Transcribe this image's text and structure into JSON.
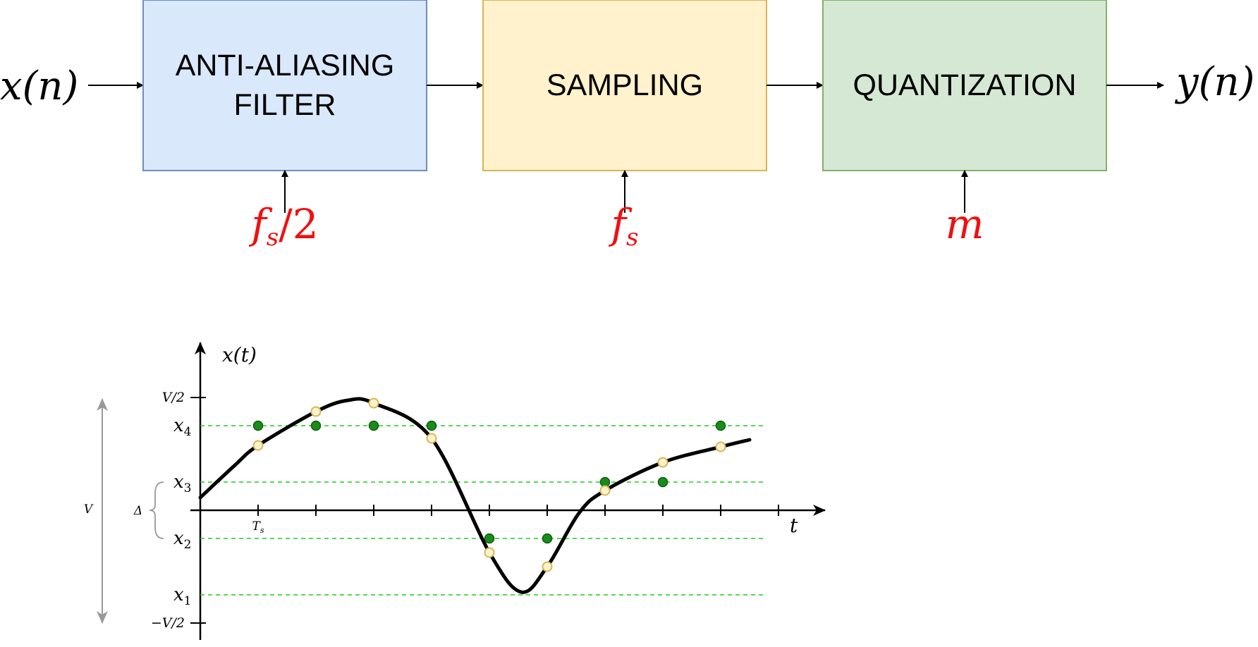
{
  "pipeline": {
    "input": {
      "symbol": "x(n)"
    },
    "output": {
      "symbol": "y(n)"
    },
    "blocks": [
      {
        "id": "anti-aliasing",
        "lines": [
          "ANTI-ALIASING",
          "FILTER"
        ],
        "param": "f",
        "param_sub": "s",
        "param_suffix": "/2",
        "fill": "#dae8fc",
        "stroke": "#6c8ebf"
      },
      {
        "id": "sampling",
        "lines": [
          "SAMPLING"
        ],
        "param": "f",
        "param_sub": "s",
        "param_suffix": "",
        "fill": "#fff2cc",
        "stroke": "#d6b656"
      },
      {
        "id": "quantization",
        "lines": [
          "QUANTIZATION"
        ],
        "param": "m",
        "param_sub": "",
        "param_suffix": "",
        "fill": "#d5e8d4",
        "stroke": "#82b366"
      }
    ]
  },
  "plot": {
    "y_axis_label": "x(t)",
    "x_axis_label": "t",
    "x_tick_label": {
      "base": "T",
      "sub": "s"
    },
    "range_label": "V",
    "step_label": "Δ",
    "top_label": "V/2",
    "bottom_label": "−V/2",
    "levels": [
      {
        "name": "x",
        "sub": "4",
        "value": 0.3
      },
      {
        "name": "x",
        "sub": "3",
        "value": 0.1
      },
      {
        "name": "x",
        "sub": "2",
        "value": -0.1
      },
      {
        "name": "x",
        "sub": "1",
        "value": -0.3
      }
    ],
    "v_half": 0.4,
    "x_range": [
      0,
      10.5
    ],
    "curve_end": 9.5,
    "samples_original": [
      {
        "n": 1,
        "value": 0.23
      },
      {
        "n": 2,
        "value": 0.35
      },
      {
        "n": 3,
        "value": 0.38
      },
      {
        "n": 4,
        "value": 0.255
      },
      {
        "n": 5,
        "value": -0.15
      },
      {
        "n": 6,
        "value": -0.2
      },
      {
        "n": 7,
        "value": 0.07
      },
      {
        "n": 8,
        "value": 0.17
      },
      {
        "n": 9,
        "value": 0.225
      }
    ],
    "samples_quantized": [
      {
        "n": 1,
        "value": 0.3
      },
      {
        "n": 2,
        "value": 0.3
      },
      {
        "n": 3,
        "value": 0.3
      },
      {
        "n": 4,
        "value": 0.3
      },
      {
        "n": 5,
        "value": -0.1
      },
      {
        "n": 6,
        "value": -0.1
      },
      {
        "n": 7,
        "value": 0.1
      },
      {
        "n": 8,
        "value": 0.1
      },
      {
        "n": 9,
        "value": 0.3
      }
    ],
    "colors": {
      "level_line": "#22cc22",
      "quantized_fill": "#1a8c1a",
      "quantized_stroke": "#0e5c0e",
      "original_fill": "#fff2cc",
      "original_stroke": "#d6b656",
      "range_arrow": "#999999"
    }
  }
}
